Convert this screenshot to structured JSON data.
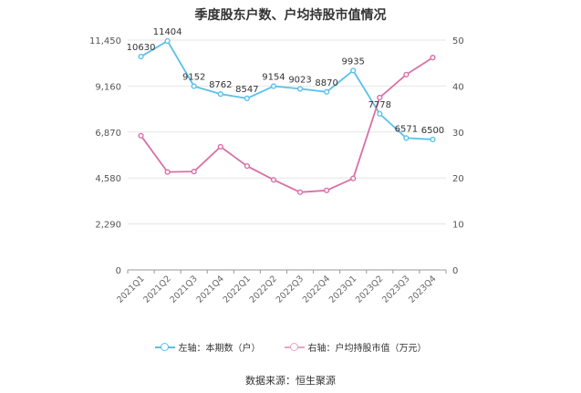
{
  "chart_data": {
    "type": "line",
    "title": "季度股东户数、户均持股市值情况",
    "categories": [
      "2021Q1",
      "2021Q2",
      "2021Q3",
      "2021Q4",
      "2022Q1",
      "2022Q2",
      "2022Q3",
      "2022Q4",
      "2023Q1",
      "2023Q2",
      "2023Q3",
      "2023Q4"
    ],
    "y_left": {
      "ylim": [
        0,
        11450
      ],
      "ticks": [
        "0",
        "2,290",
        "4,580",
        "6,870",
        "9,160",
        "11,450"
      ]
    },
    "y_right": {
      "ylim": [
        0,
        50
      ],
      "ticks": [
        "0",
        "10",
        "20",
        "30",
        "40",
        "50"
      ]
    },
    "series": [
      {
        "name": "左轴：本期数（户）",
        "axis": "left",
        "color": "#5bc0eb",
        "values": [
          10630,
          11404,
          9152,
          8762,
          8547,
          9154,
          9023,
          8870,
          9935,
          7778,
          6571,
          6500
        ],
        "labels": [
          "10630",
          "11404",
          "9152",
          "8762",
          "8547",
          "9154",
          "9023",
          "8870",
          "9935",
          "7778",
          "6571",
          "6500"
        ]
      },
      {
        "name": "右轴：户均持股市值（万元）",
        "axis": "right",
        "color": "#d96fa8",
        "values": [
          29.2,
          21.3,
          21.4,
          26.8,
          22.6,
          19.6,
          16.9,
          17.3,
          19.9,
          37.5,
          42.5,
          46.2
        ]
      }
    ],
    "grid": "horizontal",
    "legend_position": "bottom"
  },
  "source": "数据来源：恒生聚源"
}
